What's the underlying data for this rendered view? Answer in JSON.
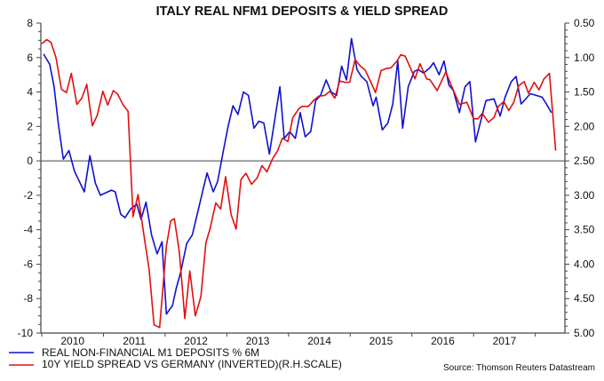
{
  "chart_data": {
    "type": "line",
    "title": "ITALY REAL NFM1 DEPOSITS & YIELD SPREAD",
    "source": "Source: Thomson Reuters Datastream",
    "legend_placement": "bottom-left",
    "grid": false,
    "zero_line": true,
    "xlim": [
      2010.0,
      2018.48
    ],
    "x_tick_labels": [
      "2010",
      "2011",
      "2012",
      "2013",
      "2014",
      "2015",
      "2016",
      "2017"
    ],
    "y_left": {
      "ylim": [
        -10,
        8
      ],
      "tick_labels": [
        "-10",
        "-8",
        "-6",
        "-4",
        "-2",
        "0",
        "2",
        "4",
        "6",
        "8"
      ]
    },
    "y_right": {
      "ylim": [
        5.0,
        0.5
      ],
      "inverted": true,
      "tick_labels": [
        "0.50",
        "1.00",
        "1.50",
        "2.00",
        "2.50",
        "3.00",
        "3.50",
        "4.00",
        "4.50",
        "5.00"
      ]
    },
    "series": [
      {
        "name": "REAL NON-FINANCIAL M1 DEPOSITS % 6M",
        "axis": "left",
        "color": "#1010d0",
        "points": [
          [
            2010.03,
            6.2
          ],
          [
            2010.13,
            5.6
          ],
          [
            2010.2,
            4.3
          ],
          [
            2010.27,
            2.1
          ],
          [
            2010.35,
            0.1
          ],
          [
            2010.44,
            0.6
          ],
          [
            2010.53,
            -0.6
          ],
          [
            2010.69,
            -1.8
          ],
          [
            2010.78,
            0.3
          ],
          [
            2010.87,
            -1.3
          ],
          [
            2010.95,
            -2.0
          ],
          [
            2011.13,
            -1.7
          ],
          [
            2011.19,
            -1.8
          ],
          [
            2011.28,
            -3.1
          ],
          [
            2011.35,
            -3.3
          ],
          [
            2011.44,
            -2.8
          ],
          [
            2011.54,
            -2.5
          ],
          [
            2011.61,
            -3.4
          ],
          [
            2011.69,
            -2.4
          ],
          [
            2011.78,
            -4.3
          ],
          [
            2011.87,
            -5.4
          ],
          [
            2011.95,
            -4.7
          ],
          [
            2012.02,
            -8.9
          ],
          [
            2012.12,
            -8.4
          ],
          [
            2012.18,
            -7.4
          ],
          [
            2012.25,
            -6.5
          ],
          [
            2012.35,
            -4.8
          ],
          [
            2012.44,
            -4.3
          ],
          [
            2012.56,
            -2.5
          ],
          [
            2012.68,
            -0.7
          ],
          [
            2012.78,
            -1.8
          ],
          [
            2012.85,
            -1.2
          ],
          [
            2012.95,
            0.7
          ],
          [
            2013.02,
            2.0
          ],
          [
            2013.1,
            3.2
          ],
          [
            2013.18,
            2.7
          ],
          [
            2013.27,
            4.0
          ],
          [
            2013.35,
            3.8
          ],
          [
            2013.44,
            1.9
          ],
          [
            2013.52,
            2.3
          ],
          [
            2013.6,
            2.2
          ],
          [
            2013.69,
            0.4
          ],
          [
            2013.86,
            4.3
          ],
          [
            2013.93,
            1.3
          ],
          [
            2014.02,
            1.7
          ],
          [
            2014.11,
            1.3
          ],
          [
            2014.19,
            2.8
          ],
          [
            2014.27,
            1.4
          ],
          [
            2014.36,
            1.7
          ],
          [
            2014.44,
            3.5
          ],
          [
            2014.52,
            3.8
          ],
          [
            2014.61,
            4.7
          ],
          [
            2014.69,
            4.0
          ],
          [
            2014.78,
            3.8
          ],
          [
            2014.86,
            5.5
          ],
          [
            2014.94,
            4.7
          ],
          [
            2015.02,
            7.1
          ],
          [
            2015.11,
            5.3
          ],
          [
            2015.18,
            4.9
          ],
          [
            2015.27,
            4.6
          ],
          [
            2015.37,
            3.2
          ],
          [
            2015.42,
            3.7
          ],
          [
            2015.52,
            1.8
          ],
          [
            2015.61,
            2.2
          ],
          [
            2015.69,
            3.3
          ],
          [
            2015.77,
            5.8
          ],
          [
            2015.85,
            1.9
          ],
          [
            2015.94,
            4.3
          ],
          [
            2016.04,
            5.2
          ],
          [
            2016.1,
            5.3
          ],
          [
            2016.19,
            5.1
          ],
          [
            2016.29,
            5.4
          ],
          [
            2016.35,
            5.7
          ],
          [
            2016.44,
            5.0
          ],
          [
            2016.52,
            5.8
          ],
          [
            2016.6,
            4.4
          ],
          [
            2016.67,
            4.1
          ],
          [
            2016.77,
            2.8
          ],
          [
            2016.86,
            4.3
          ],
          [
            2016.94,
            4.6
          ],
          [
            2017.03,
            1.1
          ],
          [
            2017.13,
            2.5
          ],
          [
            2017.2,
            3.5
          ],
          [
            2017.33,
            3.6
          ],
          [
            2017.43,
            2.6
          ],
          [
            2017.51,
            3.7
          ],
          [
            2017.61,
            4.6
          ],
          [
            2017.69,
            4.9
          ],
          [
            2017.77,
            3.3
          ],
          [
            2017.92,
            3.9
          ],
          [
            2018.11,
            3.7
          ],
          [
            2018.18,
            3.3
          ],
          [
            2018.26,
            2.8
          ]
        ]
      },
      {
        "name": "10Y YIELD SPREAD VS GERMANY (INVERTED)(R.H.SCALE)",
        "axis": "right",
        "color": "#e01010",
        "points": [
          [
            2010.0,
            0.8
          ],
          [
            2010.08,
            0.74
          ],
          [
            2010.15,
            0.78
          ],
          [
            2010.23,
            1.0
          ],
          [
            2010.32,
            1.46
          ],
          [
            2010.4,
            1.51
          ],
          [
            2010.48,
            1.23
          ],
          [
            2010.57,
            1.68
          ],
          [
            2010.65,
            1.59
          ],
          [
            2010.73,
            1.39
          ],
          [
            2010.82,
            1.99
          ],
          [
            2010.9,
            1.84
          ],
          [
            2010.99,
            1.49
          ],
          [
            2011.07,
            1.69
          ],
          [
            2011.16,
            1.48
          ],
          [
            2011.23,
            1.53
          ],
          [
            2011.32,
            1.69
          ],
          [
            2011.4,
            1.78
          ],
          [
            2011.48,
            3.31
          ],
          [
            2011.56,
            2.99
          ],
          [
            2011.64,
            3.48
          ],
          [
            2011.74,
            4.08
          ],
          [
            2011.82,
            4.88
          ],
          [
            2011.91,
            4.92
          ],
          [
            2012.02,
            3.74
          ],
          [
            2012.09,
            3.37
          ],
          [
            2012.15,
            3.34
          ],
          [
            2012.23,
            3.82
          ],
          [
            2012.32,
            4.79
          ],
          [
            2012.4,
            4.1
          ],
          [
            2012.49,
            4.75
          ],
          [
            2012.58,
            4.47
          ],
          [
            2012.66,
            3.69
          ],
          [
            2012.73,
            3.48
          ],
          [
            2012.82,
            3.11
          ],
          [
            2012.9,
            3.2
          ],
          [
            2012.98,
            2.73
          ],
          [
            2013.07,
            3.28
          ],
          [
            2013.15,
            3.49
          ],
          [
            2013.23,
            2.77
          ],
          [
            2013.31,
            2.68
          ],
          [
            2013.4,
            2.84
          ],
          [
            2013.49,
            2.75
          ],
          [
            2013.57,
            2.57
          ],
          [
            2013.65,
            2.66
          ],
          [
            2013.74,
            2.47
          ],
          [
            2013.82,
            2.36
          ],
          [
            2013.9,
            2.17
          ],
          [
            2013.99,
            2.22
          ],
          [
            2014.07,
            1.87
          ],
          [
            2014.17,
            1.74
          ],
          [
            2014.22,
            1.71
          ],
          [
            2014.32,
            1.71
          ],
          [
            2014.41,
            1.62
          ],
          [
            2014.49,
            1.56
          ],
          [
            2014.59,
            1.55
          ],
          [
            2014.67,
            1.49
          ],
          [
            2014.75,
            1.59
          ],
          [
            2014.83,
            1.34
          ],
          [
            2014.91,
            1.36
          ],
          [
            2014.99,
            1.36
          ],
          [
            2015.08,
            1.03
          ],
          [
            2015.16,
            1.12
          ],
          [
            2015.24,
            1.18
          ],
          [
            2015.33,
            1.35
          ],
          [
            2015.41,
            1.51
          ],
          [
            2015.5,
            1.19
          ],
          [
            2015.58,
            1.16
          ],
          [
            2015.66,
            1.15
          ],
          [
            2015.75,
            1.06
          ],
          [
            2015.82,
            0.96
          ],
          [
            2015.89,
            0.98
          ],
          [
            2015.98,
            1.16
          ],
          [
            2016.05,
            1.31
          ],
          [
            2016.13,
            1.09
          ],
          [
            2016.24,
            1.31
          ],
          [
            2016.29,
            1.32
          ],
          [
            2016.41,
            1.48
          ],
          [
            2016.55,
            1.21
          ],
          [
            2016.65,
            1.43
          ],
          [
            2016.77,
            1.68
          ],
          [
            2016.89,
            1.65
          ],
          [
            2017.0,
            1.89
          ],
          [
            2017.07,
            1.89
          ],
          [
            2017.14,
            1.81
          ],
          [
            2017.24,
            1.94
          ],
          [
            2017.33,
            1.87
          ],
          [
            2017.4,
            1.71
          ],
          [
            2017.49,
            1.64
          ],
          [
            2017.57,
            1.77
          ],
          [
            2017.65,
            1.65
          ],
          [
            2017.73,
            1.41
          ],
          [
            2017.82,
            1.35
          ],
          [
            2017.89,
            1.52
          ],
          [
            2017.98,
            1.36
          ],
          [
            2018.06,
            1.47
          ],
          [
            2018.14,
            1.31
          ],
          [
            2018.23,
            1.23
          ],
          [
            2018.33,
            2.35
          ]
        ]
      }
    ]
  }
}
